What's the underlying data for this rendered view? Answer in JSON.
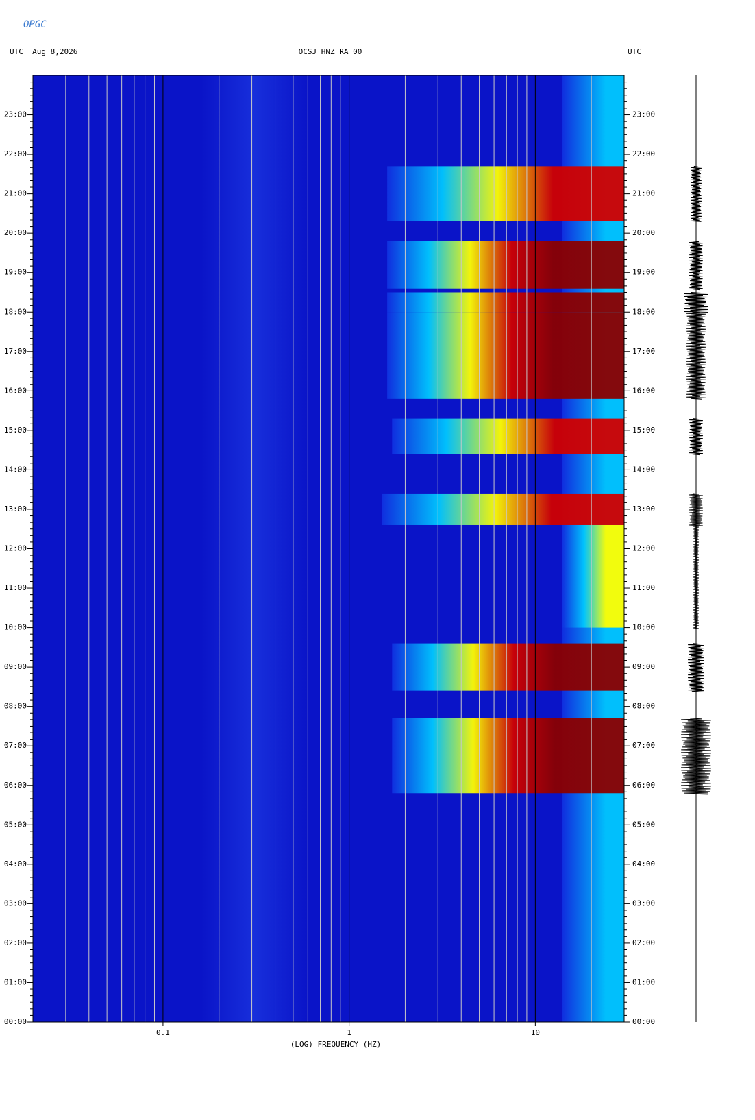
{
  "logo": "OPGC",
  "chart_data": {
    "type": "spectrogram",
    "title": "OCSJ HNZ RA 00",
    "date_label": "UTC  Aug 8,2026",
    "right_label": "UTC",
    "x_label": "(LOG) FREQUENCY (HZ)",
    "xlim": [
      0.02,
      30
    ],
    "xticks": [
      0.1,
      1,
      10
    ],
    "log_x": true,
    "ylim": [
      0,
      24
    ],
    "yticks": [
      {
        "value": 0,
        "label": "00:00"
      },
      {
        "value": 1,
        "label": "01:00"
      },
      {
        "value": 2,
        "label": "02:00"
      },
      {
        "value": 3,
        "label": "03:00"
      },
      {
        "value": 4,
        "label": "04:00"
      },
      {
        "value": 5,
        "label": "05:00"
      },
      {
        "value": 6,
        "label": "06:00"
      },
      {
        "value": 7,
        "label": "07:00"
      },
      {
        "value": 8,
        "label": "08:00"
      },
      {
        "value": 9,
        "label": "09:00"
      },
      {
        "value": 10,
        "label": "10:00"
      },
      {
        "value": 11,
        "label": "11:00"
      },
      {
        "value": 12,
        "label": "12:00"
      },
      {
        "value": 13,
        "label": "13:00"
      },
      {
        "value": 14,
        "label": "14:00"
      },
      {
        "value": 15,
        "label": "15:00"
      },
      {
        "value": 16,
        "label": "16:00"
      },
      {
        "value": 17,
        "label": "17:00"
      },
      {
        "value": 18,
        "label": "18:00"
      },
      {
        "value": 19,
        "label": "19:00"
      },
      {
        "value": 20,
        "label": "20:00"
      },
      {
        "value": 21,
        "label": "21:00"
      },
      {
        "value": 22,
        "label": "22:00"
      },
      {
        "value": 23,
        "label": "23:00"
      }
    ],
    "background": "#0a14c8",
    "colormap": [
      "#1030e0",
      "#00c8ff",
      "#ffff00",
      "#d00000",
      "#8b0000"
    ],
    "events": [
      {
        "start": 0,
        "end": 24,
        "fmin": 14,
        "level": 0.25,
        "amplitude": 2
      },
      {
        "start": 10,
        "end": 12.6,
        "fmin": 14,
        "level": 0.55,
        "amplitude": 4
      },
      {
        "start": 5.8,
        "end": 7.7,
        "fmin": 1.7,
        "level": 1,
        "amplitude": 22
      },
      {
        "start": 8.4,
        "end": 9.6,
        "fmin": 1.7,
        "level": 0.9,
        "amplitude": 12
      },
      {
        "start": 12.6,
        "end": 13.4,
        "fmin": 1.5,
        "level": 0.85,
        "amplitude": 10
      },
      {
        "start": 14.4,
        "end": 15.3,
        "fmin": 1.7,
        "level": 0.85,
        "amplitude": 10
      },
      {
        "start": 15.8,
        "end": 18.0,
        "fmin": 1.6,
        "level": 1,
        "amplitude": 14
      },
      {
        "start": 18.0,
        "end": 18.5,
        "fmin": 1.6,
        "level": 0.9,
        "amplitude": 18
      },
      {
        "start": 18.6,
        "end": 19.8,
        "fmin": 1.6,
        "level": 0.9,
        "amplitude": 10
      },
      {
        "start": 20.3,
        "end": 21.7,
        "fmin": 1.6,
        "level": 0.7,
        "amplitude": 8
      }
    ]
  }
}
